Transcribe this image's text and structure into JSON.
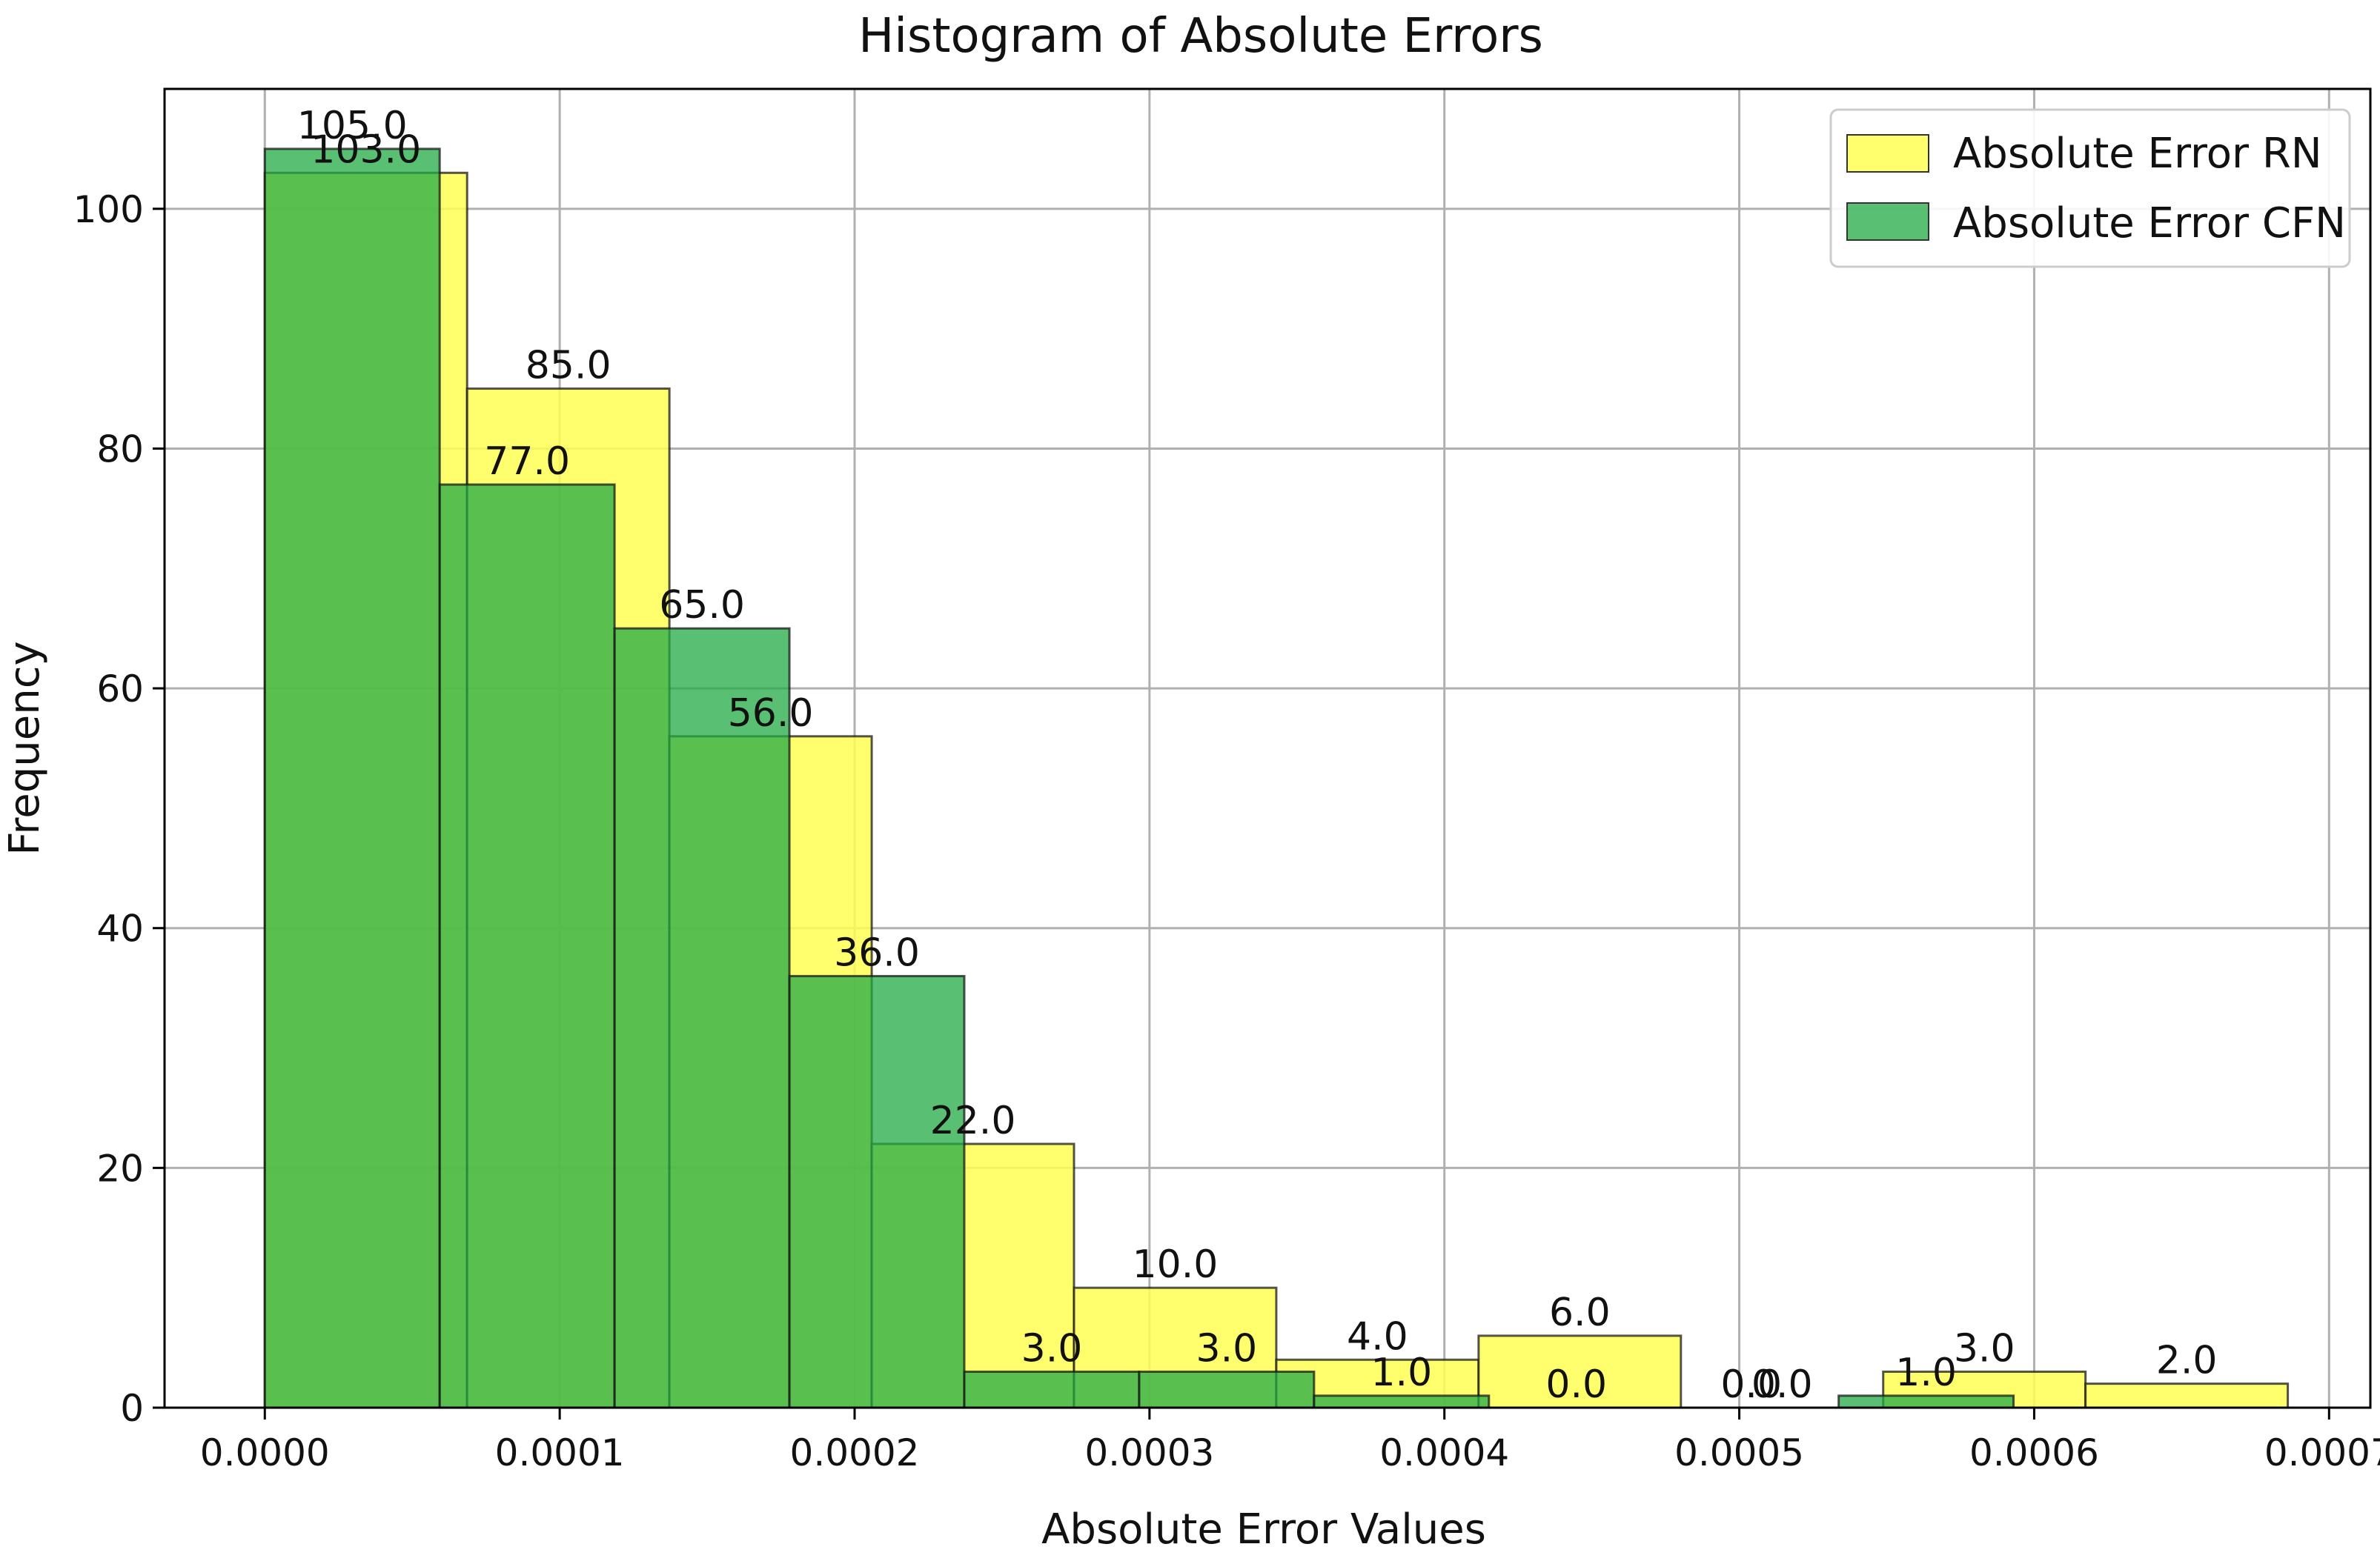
{
  "chart_data": {
    "type": "bar",
    "title": "Histogram of Absolute Errors",
    "xlabel": "Absolute Error Values",
    "ylabel": "Frequency",
    "xlim": [
      -3.4e-05,
      0.000714
    ],
    "ylim": [
      0,
      110
    ],
    "grid": true,
    "legend_position": "top-right",
    "x_ticks": [
      "0.0000",
      "0.0001",
      "0.0002",
      "0.0003",
      "0.0004",
      "0.0005",
      "0.0006",
      "0.0007"
    ],
    "x_tick_values": [
      0,
      0.0001,
      0.0002,
      0.0003,
      0.0004,
      0.0005,
      0.0006,
      0.0007
    ],
    "y_ticks": [
      "0",
      "20",
      "40",
      "60",
      "80",
      "100"
    ],
    "y_tick_values": [
      0,
      20,
      40,
      60,
      80,
      100
    ],
    "series": [
      {
        "name": "Absolute Error RN",
        "color": "#ffff55",
        "alpha": 0.85,
        "bin_edges": [
          0,
          6.86e-05,
          0.0001372,
          0.0002058,
          0.0002744,
          0.000343,
          0.0004116,
          0.0004802,
          0.0005488,
          0.0006174,
          0.000686
        ],
        "values": [
          103,
          85,
          56,
          22,
          10,
          4,
          6,
          0,
          3,
          2
        ],
        "labels": [
          "103.0",
          "85.0",
          "56.0",
          "22.0",
          "10.0",
          "4.0",
          "6.0",
          "0.0",
          "3.0",
          "2.0"
        ]
      },
      {
        "name": "Absolute Error CFN",
        "color": "#22aa44",
        "alpha": 0.75,
        "bin_edges": [
          0,
          5.93e-05,
          0.0001186,
          0.0001779,
          0.0002372,
          0.0002965,
          0.0003558,
          0.0004151,
          0.0004744,
          0.0005337,
          0.000593
        ],
        "values": [
          105,
          77,
          65,
          36,
          3,
          3,
          1,
          0,
          0,
          1
        ],
        "labels": [
          "105.0",
          "77.0",
          "65.0",
          "36.0",
          "3.0",
          "3.0",
          "1.0",
          "0.0",
          "0.0",
          "1.0"
        ]
      }
    ]
  }
}
